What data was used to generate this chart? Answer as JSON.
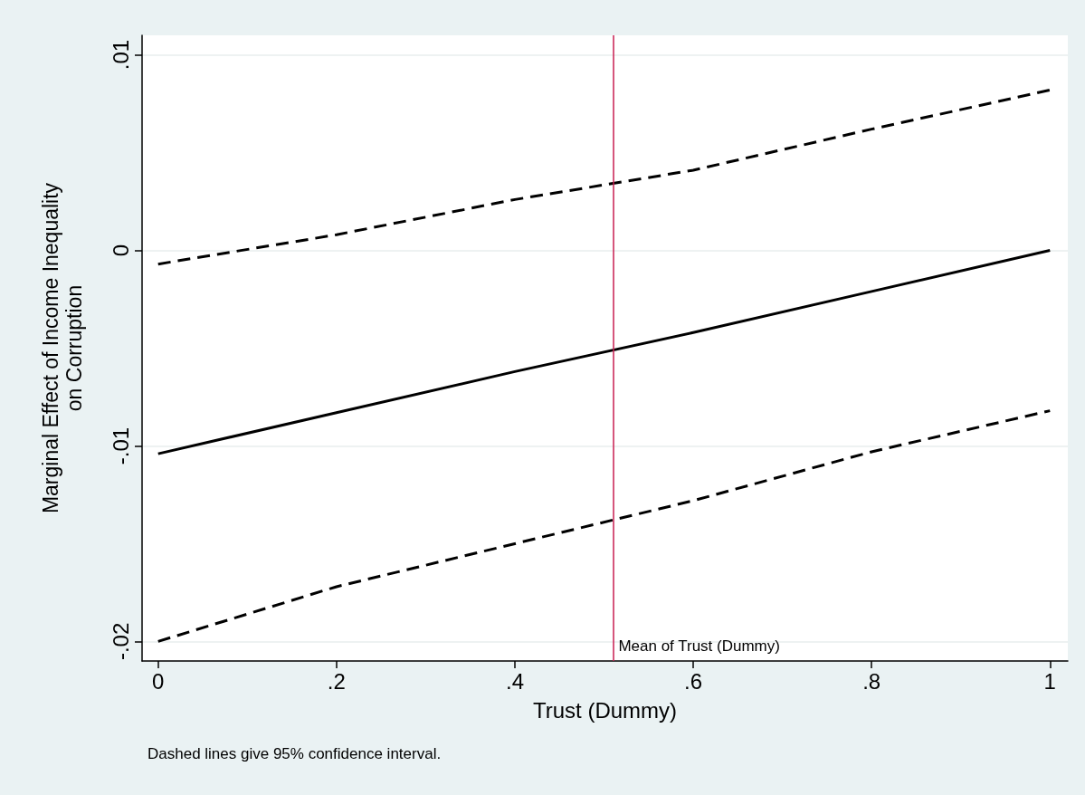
{
  "chart_data": {
    "type": "line",
    "xlabel": "Trust (Dummy)",
    "ylabel": "Marginal Effect of Income Inequality\non Corruption",
    "x": [
      0,
      0.2,
      0.4,
      0.6,
      0.8,
      1
    ],
    "series": [
      {
        "color": "#000000",
        "line_style": "solid",
        "values": [
          -0.0104,
          -0.0083,
          -0.0062,
          -0.0042,
          -0.0021,
          0.0
        ]
      },
      {
        "color": "#000000",
        "line_style": "dashed",
        "values": [
          -0.0007,
          0.0008,
          0.0026,
          0.0041,
          0.0062,
          0.0082
        ]
      },
      {
        "color": "#000000",
        "line_style": "dashed",
        "values": [
          -0.02,
          -0.0172,
          -0.015,
          -0.0128,
          -0.0103,
          -0.0082
        ]
      }
    ],
    "xlim": [
      -0.018,
      1.02
    ],
    "xticks": [
      0,
      {
        "value": 0.2,
        "label": ".2"
      },
      {
        "value": 0.4,
        "label": ".4"
      },
      {
        "value": 0.6,
        "label": ".6"
      },
      {
        "value": 0.8,
        "label": ".8"
      },
      1
    ],
    "ylim": [
      -0.021,
      0.011
    ],
    "yticks": [
      {
        "value": -0.02,
        "label": "-.02"
      },
      {
        "value": -0.01,
        "label": "-.01"
      },
      0,
      {
        "value": 0.01,
        "label": ".01"
      }
    ],
    "grid": "y",
    "marker": "none",
    "ref_lines": [
      {
        "axis": "x",
        "value": 0.508,
        "label": "Mean of Trust (Dummy)",
        "color": "#c81e50"
      }
    ],
    "annotations": [
      "Dashed lines give 95% confidence interval."
    ]
  }
}
